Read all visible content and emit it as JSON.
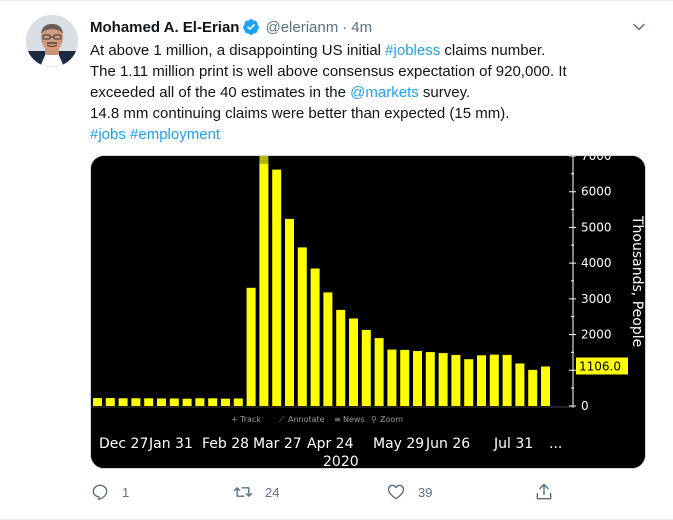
{
  "tweet": {
    "author_name": "Mohamed A. El-Erian",
    "handle": "@elerianm",
    "separator": "·",
    "time": "4m",
    "text_lines": [
      [
        {
          "t": "At above 1 million, a disappointing US initial "
        },
        {
          "t": "#jobless",
          "link": true
        },
        {
          "t": " claims number."
        }
      ],
      [
        {
          "t": "The 1.11 million print is well above consensus expectation of 920,000. It"
        }
      ],
      [
        {
          "t": "exceeded all of the 40 estimates in the "
        },
        {
          "t": "@markets",
          "link": true
        },
        {
          "t": " survey."
        }
      ],
      [
        {
          "t": "14.8 mm continuing claims were better than expected (15 mm)."
        }
      ],
      [
        {
          "t": "#jobs",
          "link": true
        },
        {
          "t": " "
        },
        {
          "t": "#employment",
          "link": true
        }
      ]
    ],
    "actions": {
      "reply_count": "1",
      "retweet_count": "24",
      "like_count": "39"
    }
  },
  "colors": {
    "link": "#1da1f2",
    "secondary": "#5b7083",
    "bar": "#ffff00",
    "bar_highlight": "#b3b300",
    "axis": "#ffffff",
    "chart_background": "#000000"
  },
  "chart_data": {
    "type": "bar",
    "x_tick_labels": [
      "Dec 27",
      "Jan 31",
      "Feb 28",
      "Mar 27",
      "Apr 24",
      "May 29",
      "Jun 26",
      "Jul 31",
      "..."
    ],
    "x_year_label": "2020",
    "ylabel": "Thousands, People",
    "y_ticks": [
      0,
      1000,
      2000,
      3000,
      4000,
      5000,
      6000,
      7000
    ],
    "y_tick_labels": [
      "0",
      "1000",
      "2000",
      "3000",
      "4000",
      "5000",
      "6000",
      "7000"
    ],
    "ylim": [
      0,
      7000
    ],
    "y_axis_side": "right",
    "last_value_label": "1106.0",
    "toolbar_items": [
      "Track",
      "Annotate",
      "News",
      "Zoom"
    ],
    "values": [
      220,
      220,
      215,
      215,
      215,
      210,
      210,
      205,
      215,
      215,
      205,
      210,
      3310,
      6870,
      6620,
      5240,
      4440,
      3850,
      3180,
      2690,
      2450,
      2130,
      1900,
      1580,
      1570,
      1540,
      1510,
      1480,
      1430,
      1310,
      1420,
      1440,
      1430,
      1190,
      1010,
      1106
    ]
  }
}
